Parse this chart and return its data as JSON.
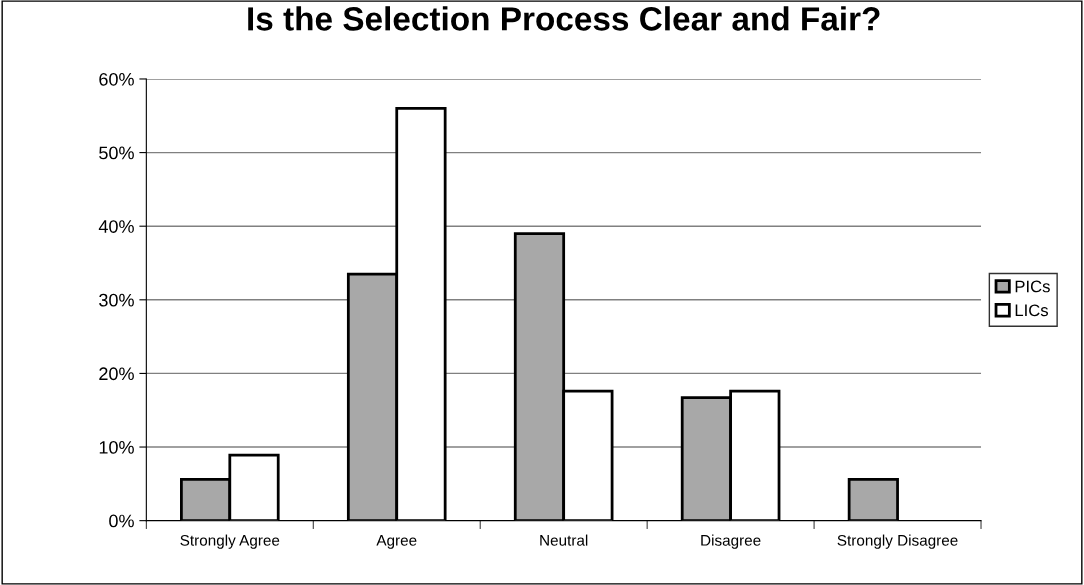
{
  "chart_data": {
    "type": "bar",
    "title": "Is the Selection Process Clear and Fair?",
    "categories": [
      "Strongly Agree",
      "Agree",
      "Neutral",
      "Disagree",
      "Strongly Disagree"
    ],
    "series": [
      {
        "name": "PICs",
        "color": "#a8a8a8",
        "values": [
          5.6,
          33.5,
          39.0,
          16.7,
          5.6
        ]
      },
      {
        "name": "LICs",
        "color": "#ffffff",
        "values": [
          8.9,
          56.0,
          17.6,
          17.6,
          null
        ]
      }
    ],
    "ylim": [
      0,
      60
    ],
    "yticks": [
      {
        "value": 0,
        "label": "0%"
      },
      {
        "value": 10,
        "label": "10%"
      },
      {
        "value": 20,
        "label": "20%"
      },
      {
        "value": 30,
        "label": "30%"
      },
      {
        "value": 40,
        "label": "40%"
      },
      {
        "value": 50,
        "label": "50%"
      },
      {
        "value": 60,
        "label": "60%"
      }
    ],
    "grid": "y",
    "legend": "right"
  }
}
